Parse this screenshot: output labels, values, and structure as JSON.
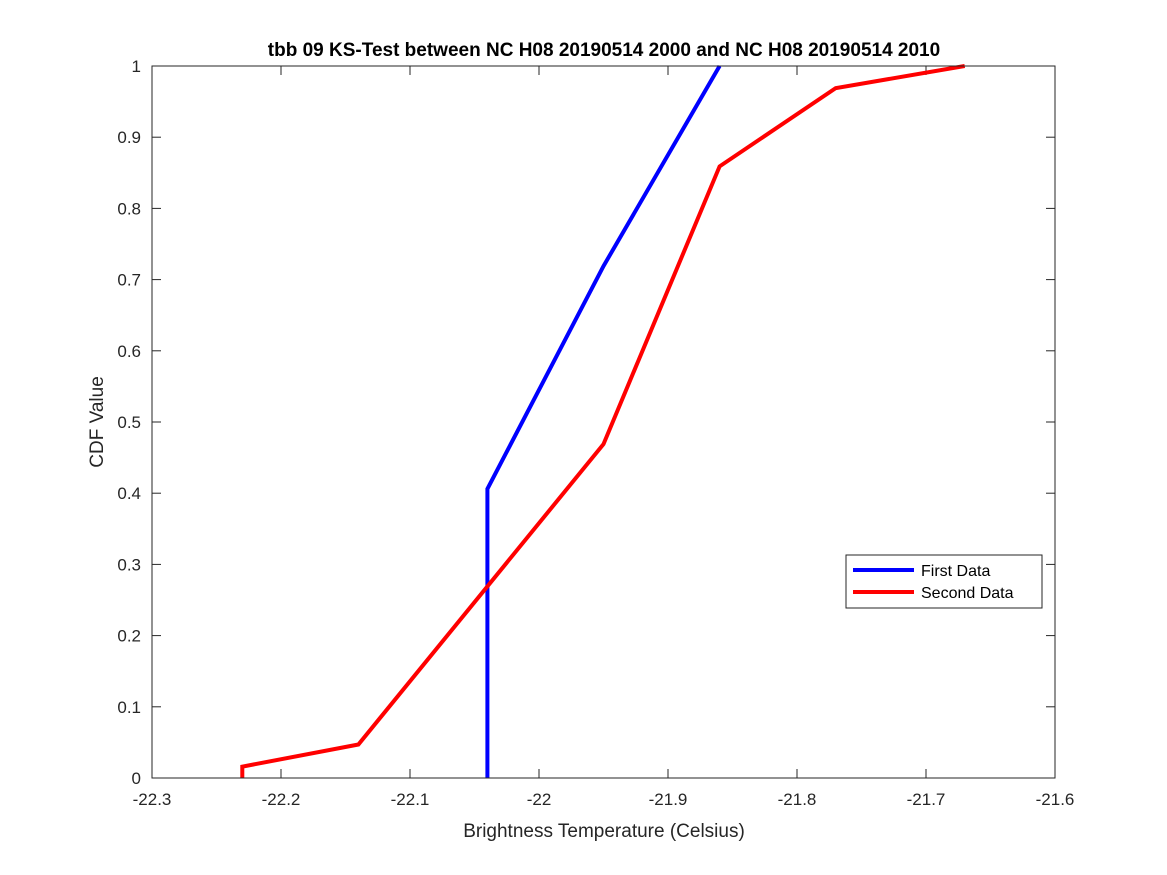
{
  "chart_data": {
    "type": "line",
    "title": "tbb 09 KS-Test between NC H08 20190514 2000 and NC H08 20190514 2010",
    "xlabel": "Brightness Temperature (Celsius)",
    "ylabel": "CDF Value",
    "xlim": [
      -22.3,
      -21.6
    ],
    "ylim": [
      0,
      1
    ],
    "xticks": [
      -22.3,
      -22.2,
      -22.1,
      -22.0,
      -21.9,
      -21.8,
      -21.7,
      -21.6
    ],
    "xtick_labels": [
      "-22.3",
      "-22.2",
      "-22.1",
      "-22",
      "-21.9",
      "-21.8",
      "-21.7",
      "-21.6"
    ],
    "yticks": [
      0,
      0.1,
      0.2,
      0.3,
      0.4,
      0.5,
      0.6,
      0.7,
      0.8,
      0.9,
      1
    ],
    "ytick_labels": [
      "0",
      "0.1",
      "0.2",
      "0.3",
      "0.4",
      "0.5",
      "0.6",
      "0.7",
      "0.8",
      "0.9",
      "1"
    ],
    "grid": false,
    "legend_position": "right-center",
    "series": [
      {
        "name": "First Data",
        "color": "#0000ff",
        "points": [
          {
            "x": -22.04,
            "y": 0
          },
          {
            "x": -22.04,
            "y": 0.406
          },
          {
            "x": -21.95,
            "y": 0.719
          },
          {
            "x": -21.86,
            "y": 1.0
          }
        ]
      },
      {
        "name": "Second Data",
        "color": "#ff0000",
        "points": [
          {
            "x": -22.23,
            "y": 0
          },
          {
            "x": -22.23,
            "y": 0.016
          },
          {
            "x": -22.14,
            "y": 0.047
          },
          {
            "x": -21.95,
            "y": 0.469
          },
          {
            "x": -21.86,
            "y": 0.859
          },
          {
            "x": -21.77,
            "y": 0.969
          },
          {
            "x": -21.67,
            "y": 1.0
          }
        ]
      }
    ]
  }
}
